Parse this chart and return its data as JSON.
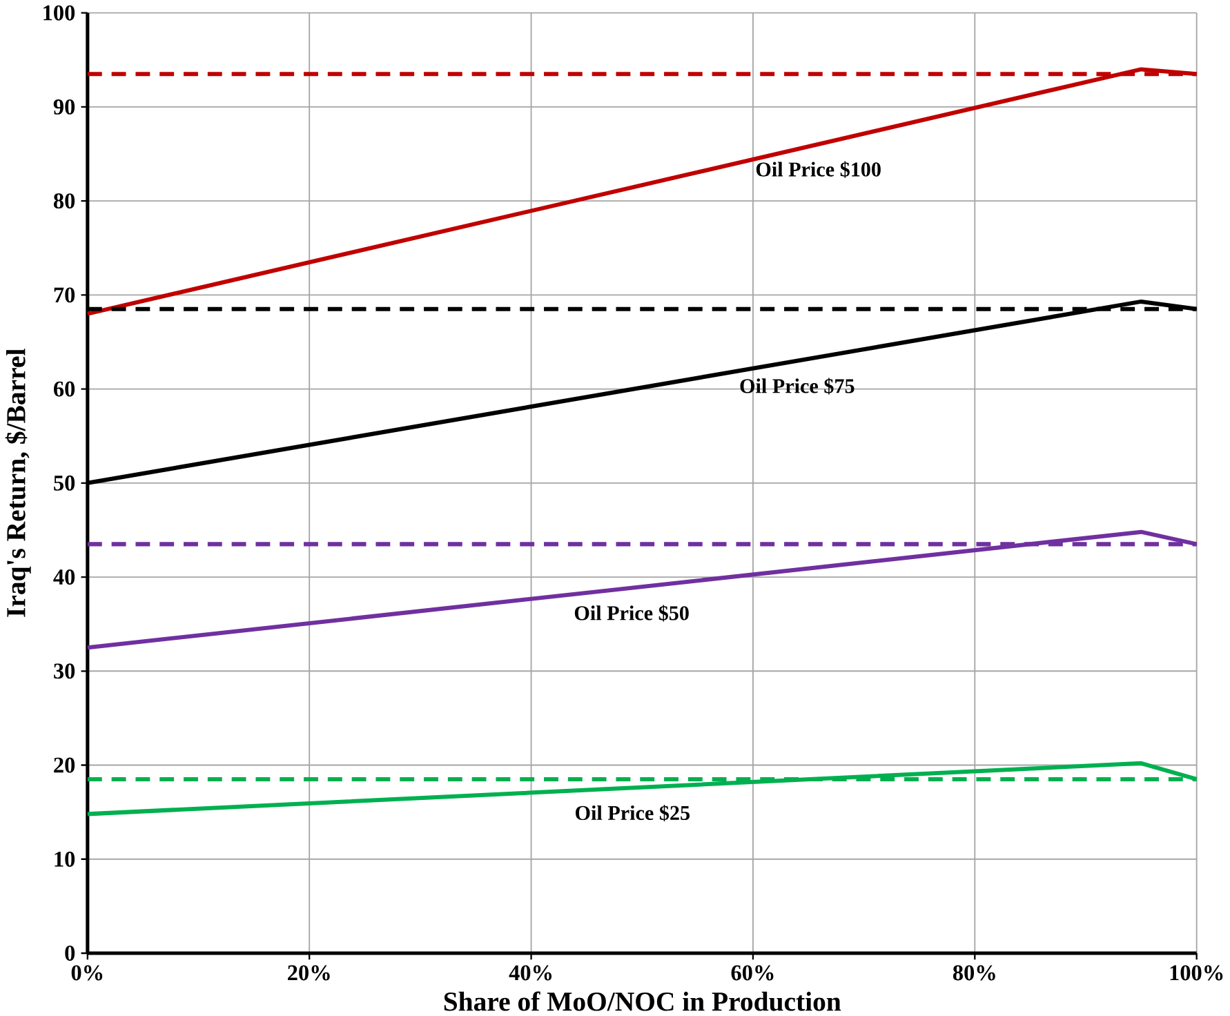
{
  "chart_data": {
    "type": "line",
    "xlabel": "Share of MoO/NOC in Production",
    "ylabel": "Iraq's Return, $/Barrel",
    "xlim": [
      0,
      100
    ],
    "ylim": [
      0,
      100
    ],
    "xticks": [
      {
        "value": 0,
        "label": "0%"
      },
      {
        "value": 20,
        "label": "20%"
      },
      {
        "value": 40,
        "label": "40%"
      },
      {
        "value": 60,
        "label": "60%"
      },
      {
        "value": 80,
        "label": "80%"
      },
      {
        "value": 100,
        "label": "100%"
      }
    ],
    "yticks": [
      0,
      10,
      20,
      30,
      40,
      50,
      60,
      70,
      80,
      90,
      100
    ],
    "grid": true,
    "legend": false,
    "marker": "none",
    "series": [
      {
        "name": "Oil Price $100",
        "color": "#c00000",
        "x": [
          0,
          95,
          100
        ],
        "values": [
          68,
          94,
          93.5
        ],
        "line_style": "solid"
      },
      {
        "color": "#c00000",
        "x": [
          0,
          100
        ],
        "values": [
          93.5,
          93.5
        ],
        "line_style": "dashed"
      },
      {
        "name": "Oil Price $75",
        "color": "#000000",
        "x": [
          0,
          95,
          100
        ],
        "values": [
          50,
          69.3,
          68.5
        ],
        "line_style": "solid"
      },
      {
        "color": "#000000",
        "x": [
          0,
          100
        ],
        "values": [
          68.5,
          68.5
        ],
        "line_style": "dashed"
      },
      {
        "name": "Oil Price $50",
        "color": "#7030a0",
        "x": [
          0,
          95,
          100
        ],
        "values": [
          32.5,
          44.8,
          43.5
        ],
        "line_style": "solid"
      },
      {
        "color": "#7030a0",
        "x": [
          0,
          100
        ],
        "values": [
          43.5,
          43.5
        ],
        "line_style": "dashed"
      },
      {
        "name": "Oil Price $25",
        "color": "#00b050",
        "x": [
          0,
          95,
          100
        ],
        "values": [
          14.8,
          20.2,
          18.5
        ],
        "line_style": "solid"
      },
      {
        "color": "#00b050",
        "x": [
          0,
          100
        ],
        "values": [
          18.5,
          18.5
        ],
        "line_style": "dashed"
      }
    ]
  }
}
